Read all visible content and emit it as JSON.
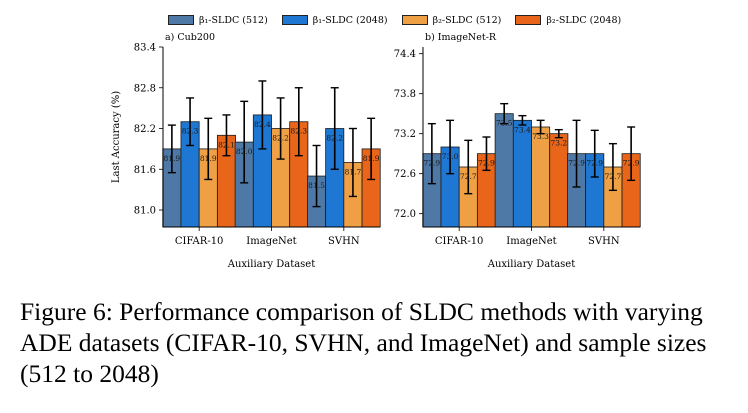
{
  "legend": [
    {
      "label": "β₁-SLDC (512)",
      "color": "#4e79a7"
    },
    {
      "label": "β₁-SLDC (2048)",
      "color": "#1f77d4"
    },
    {
      "label": "β₂-SLDC (512)",
      "color": "#f0a044"
    },
    {
      "label": "β₂-SLDC (2048)",
      "color": "#e8651a"
    }
  ],
  "chart_data": [
    {
      "type": "bar",
      "title": "a) Cub200",
      "xlabel": "Auxiliary Dataset",
      "ylabel": "Last Accuracy (%)",
      "ylim": [
        80.75,
        83.4
      ],
      "yticks": [
        81.0,
        81.6,
        82.2,
        82.8,
        83.4
      ],
      "categories": [
        "CIFAR-10",
        "ImageNet",
        "SVHN"
      ],
      "series": [
        {
          "name": "β₁-SLDC (512)",
          "values": [
            81.9,
            82.0,
            81.5
          ],
          "labels": [
            "81.9",
            "82.0",
            "81.5"
          ],
          "err": [
            0.35,
            0.6,
            0.45
          ]
        },
        {
          "name": "β₁-SLDC (2048)",
          "values": [
            82.3,
            82.4,
            82.2
          ],
          "labels": [
            "82.3",
            "82.4",
            "82.2"
          ],
          "err": [
            0.35,
            0.5,
            0.6
          ]
        },
        {
          "name": "β₂-SLDC (512)",
          "values": [
            81.9,
            82.2,
            81.7
          ],
          "labels": [
            "81.9",
            "82.2",
            "81.7"
          ],
          "err": [
            0.45,
            0.45,
            0.5
          ]
        },
        {
          "name": "β₂-SLDC (2048)",
          "values": [
            82.1,
            82.3,
            81.9
          ],
          "labels": [
            "82.1",
            "82.3",
            "81.9"
          ],
          "err": [
            0.3,
            0.5,
            0.45
          ]
        }
      ]
    },
    {
      "type": "bar",
      "title": "b) ImageNet-R",
      "xlabel": "Auxiliary Dataset",
      "ylabel": "",
      "ylim": [
        71.8,
        74.5
      ],
      "yticks": [
        72.0,
        72.6,
        73.2,
        73.8,
        74.4
      ],
      "categories": [
        "CIFAR-10",
        "ImageNet",
        "SVHN"
      ],
      "series": [
        {
          "name": "β₁-SLDC (512)",
          "values": [
            72.9,
            73.5,
            72.9
          ],
          "labels": [
            "72.9",
            "73.5",
            "72.9"
          ],
          "err": [
            0.45,
            0.15,
            0.5
          ]
        },
        {
          "name": "β₁-SLDC (2048)",
          "values": [
            73.0,
            73.4,
            72.9
          ],
          "labels": [
            "73.0",
            "73.4",
            "72.9"
          ],
          "err": [
            0.4,
            0.07,
            0.35
          ]
        },
        {
          "name": "β₂-SLDC (512)",
          "values": [
            72.7,
            73.3,
            72.7
          ],
          "labels": [
            "72.7",
            "73.3",
            "72.7"
          ],
          "err": [
            0.4,
            0.1,
            0.35
          ]
        },
        {
          "name": "β₂-SLDC (2048)",
          "values": [
            72.9,
            73.2,
            72.9
          ],
          "labels": [
            "72.9",
            "73.2",
            "72.9"
          ],
          "err": [
            0.25,
            0.06,
            0.4
          ]
        }
      ]
    }
  ],
  "caption": "Figure 6: Performance comparison of SLDC methods with varying ADE datasets (CIFAR-10, SVHN, and ImageNet) and sample sizes (512 to 2048)"
}
